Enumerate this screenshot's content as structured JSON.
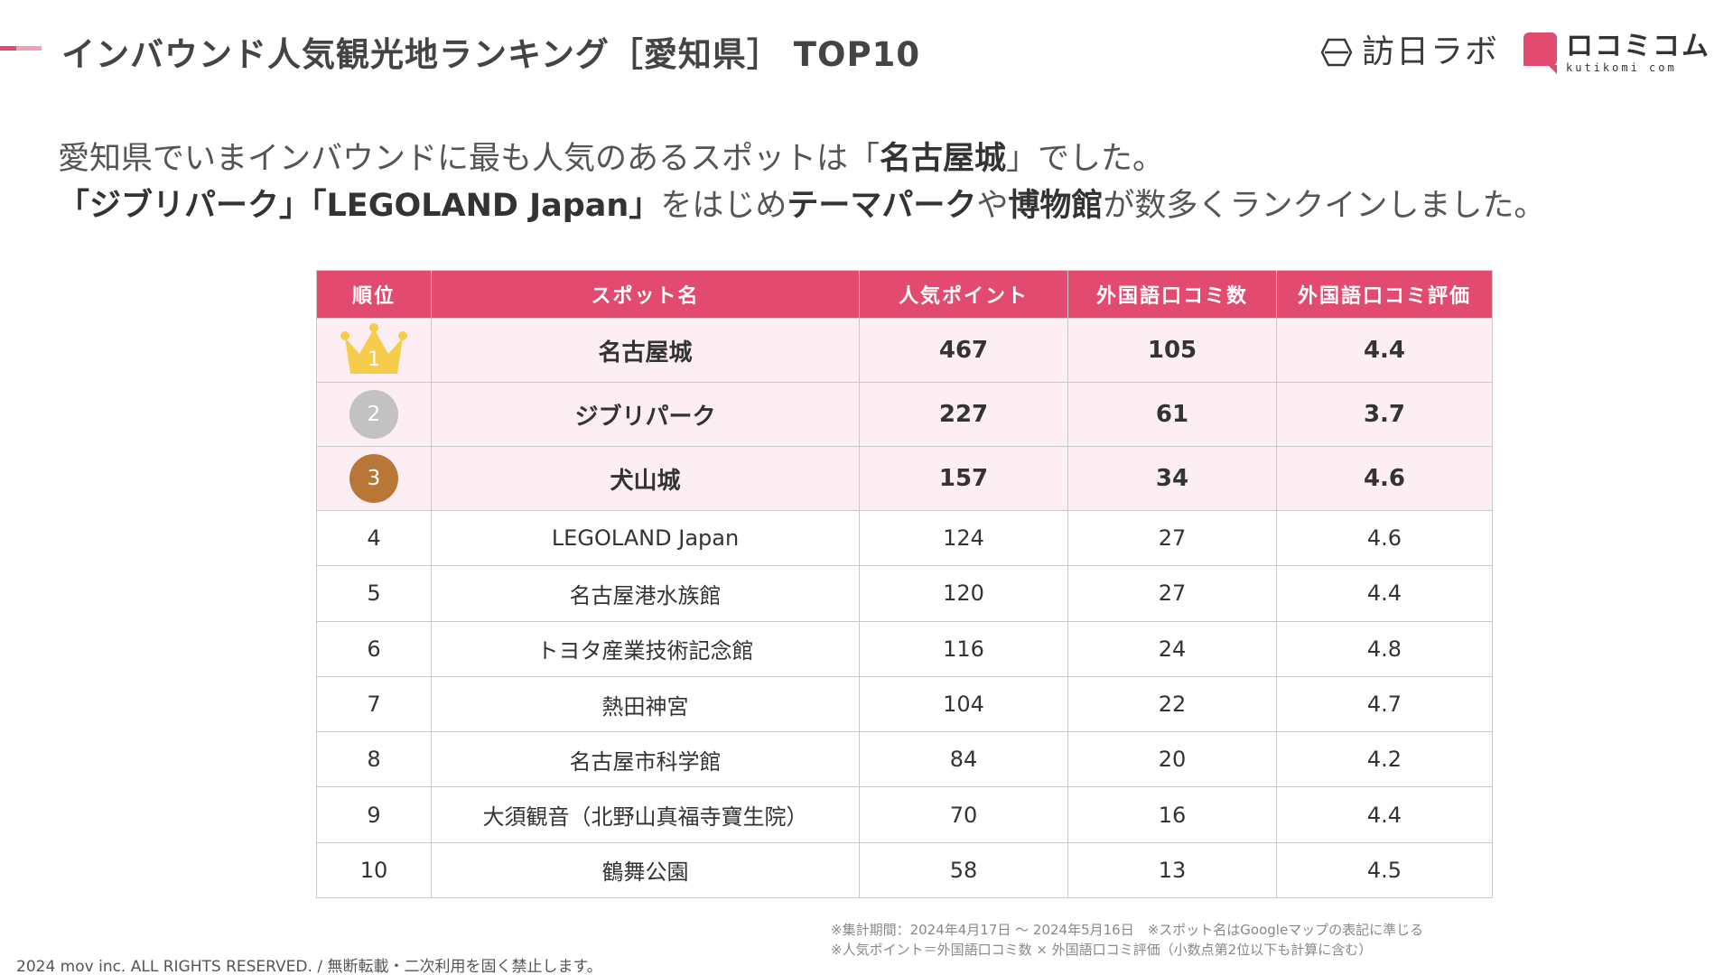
{
  "title": "インバウンド人気観光地ランキング［愛知県］ TOP10",
  "logos": {
    "houjin": "訪日ラボ",
    "kutikomi_main": "ロコミコム",
    "kutikomi_sub": "kutikomi com"
  },
  "intro": {
    "line1_a": "愛知県でいまインバウンドに最も人気のあるスポットは「",
    "line1_b": "名古屋城",
    "line1_c": "」でした。",
    "line2_a": "「ジブリパーク」「LEGOLAND Japan」",
    "line2_b": "をはじめ",
    "line2_c": "テーマパーク",
    "line2_d": "や",
    "line2_e": "博物館",
    "line2_f": "が数多くランクインしました。"
  },
  "table": {
    "headers": [
      "順位",
      "スポット名",
      "人気ポイント",
      "外国語口コミ数",
      "外国語口コミ評価"
    ],
    "rows": [
      {
        "rank": "1",
        "spot": "名古屋城",
        "points": "467",
        "reviews": "105",
        "rating": "4.4"
      },
      {
        "rank": "2",
        "spot": "ジブリパーク",
        "points": "227",
        "reviews": "61",
        "rating": "3.7"
      },
      {
        "rank": "3",
        "spot": "犬山城",
        "points": "157",
        "reviews": "34",
        "rating": "4.6"
      },
      {
        "rank": "4",
        "spot": "LEGOLAND Japan",
        "points": "124",
        "reviews": "27",
        "rating": "4.6"
      },
      {
        "rank": "5",
        "spot": "名古屋港水族館",
        "points": "120",
        "reviews": "27",
        "rating": "4.4"
      },
      {
        "rank": "6",
        "spot": "トヨタ産業技術記念館",
        "points": "116",
        "reviews": "24",
        "rating": "4.8"
      },
      {
        "rank": "7",
        "spot": "熱田神宮",
        "points": "104",
        "reviews": "22",
        "rating": "4.7"
      },
      {
        "rank": "8",
        "spot": "名古屋市科学館",
        "points": "84",
        "reviews": "20",
        "rating": "4.2"
      },
      {
        "rank": "9",
        "spot": "大須観音（北野山真福寺寶生院）",
        "points": "70",
        "reviews": "16",
        "rating": "4.4"
      },
      {
        "rank": "10",
        "spot": "鶴舞公園",
        "points": "58",
        "reviews": "13",
        "rating": "4.5"
      }
    ]
  },
  "footnotes": {
    "line1": "※集計期間：2024年4月17日 〜 2024年5月16日　※スポット名はGoogleマップの表記に準じる",
    "line2": "※人気ポイント＝外国語口コミ数 × 外国語口コミ評価（小数点第2位以下も計算に含む）"
  },
  "copyright": "2024 mov inc. ALL RIGHTS RESERVED. / 無断転載・二次利用を固く禁止します。",
  "colors": {
    "accent": "#e24b6f",
    "top_row_bg": "#fdeef3",
    "gold": "#f6cd4a",
    "silver": "#c2c2c2",
    "bronze": "#b97737"
  }
}
